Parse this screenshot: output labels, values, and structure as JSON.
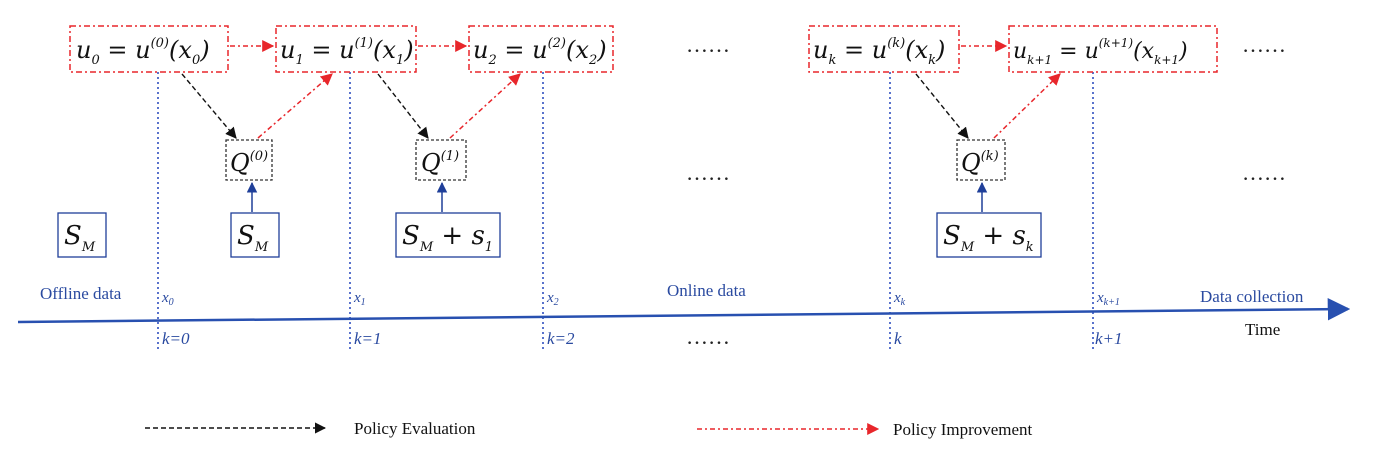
{
  "colors": {
    "policy_box": "#e8262b",
    "q_box": "#333333",
    "s_box": "#1f3f99",
    "axis": "#2850b0",
    "dotted": "#3050c0",
    "label": "#2a4aa0",
    "text": "#111111"
  },
  "policies": [
    {
      "lhs": "u",
      "lsub": "0",
      "rhs": "u",
      "rsup": "(0)",
      "arg": "x",
      "asub": "0"
    },
    {
      "lhs": "u",
      "lsub": "1",
      "rhs": "u",
      "rsup": "(1)",
      "arg": "x",
      "asub": "1"
    },
    {
      "lhs": "u",
      "lsub": "2",
      "rhs": "u",
      "rsup": "(2)",
      "arg": "x",
      "asub": "2"
    },
    {
      "lhs": "u",
      "lsub": "k",
      "rhs": "u",
      "rsup": "(k)",
      "arg": "x",
      "asub": "k"
    },
    {
      "lhs": "u",
      "lsub": "k+1",
      "rhs": "u",
      "rsup": "(k+1)",
      "arg": "x",
      "asub": "k+1"
    }
  ],
  "q_functions": [
    {
      "q": "Q",
      "sup": "(0)"
    },
    {
      "q": "Q",
      "sup": "(1)"
    },
    {
      "q": "Q",
      "sup": "(k)"
    }
  ],
  "datasets": [
    {
      "s": "S",
      "sub": "M",
      "plus": ""
    },
    {
      "s": "S",
      "sub": "M",
      "plus": ""
    },
    {
      "s": "S",
      "sub": "M",
      "plus": "+ s",
      "plus_sub": "1"
    },
    {
      "s": "S",
      "sub": "M",
      "plus": "+ s",
      "plus_sub": "k"
    }
  ],
  "ellipsis": "……",
  "states": [
    {
      "x": "x",
      "sub": "0"
    },
    {
      "x": "x",
      "sub": "1"
    },
    {
      "x": "x",
      "sub": "2"
    },
    {
      "x": "x",
      "sub": "k"
    },
    {
      "x": "x",
      "sub": "k+1"
    }
  ],
  "steps": [
    "k=0",
    "k=1",
    "k=2",
    "k",
    "k+1"
  ],
  "labels": {
    "offline": "Offline data",
    "online": "Online data",
    "collection": "Data collection",
    "time": "Time"
  },
  "legend": {
    "evaluation": "Policy Evaluation",
    "improvement": "Policy Improvement"
  }
}
